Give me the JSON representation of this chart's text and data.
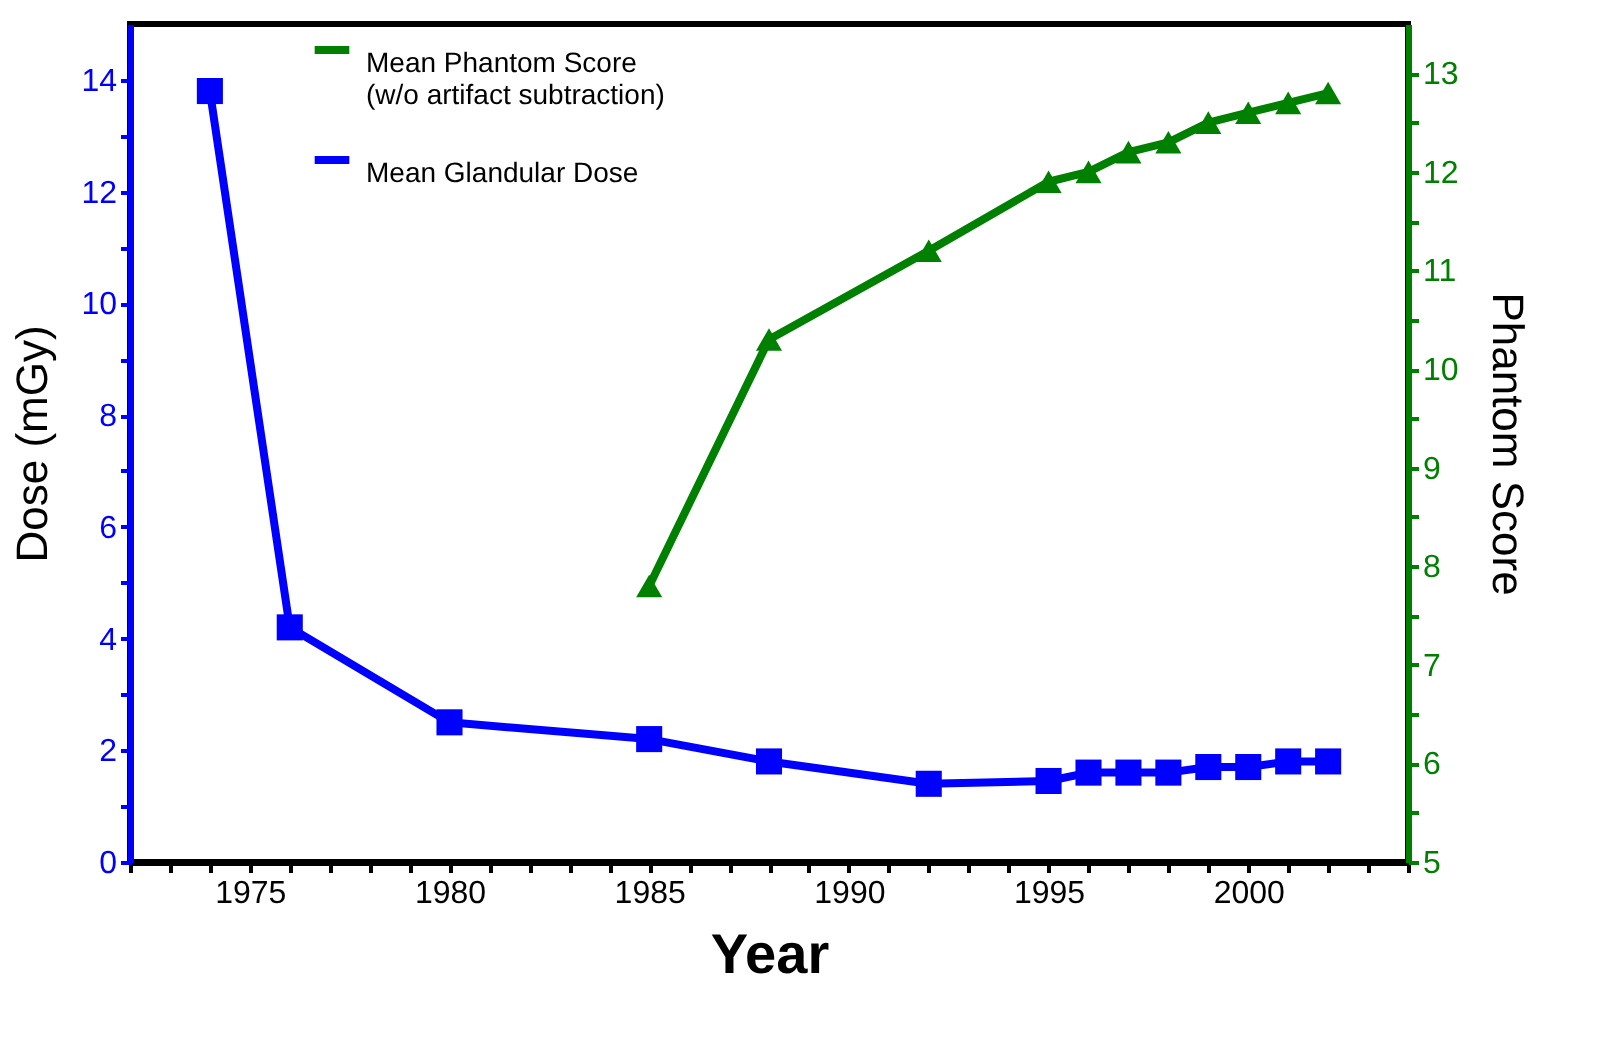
{
  "chart_data": {
    "type": "line",
    "xlabel": "Year",
    "ylabel": "Dose (mGy)",
    "y2label": "Phantom Score",
    "xlim": [
      1972,
      2004
    ],
    "ylim": [
      0,
      15
    ],
    "y2lim": [
      5,
      13.5
    ],
    "xticks": [
      {
        "value": 1972,
        "label": null
      },
      {
        "value": 1973,
        "label": null
      },
      {
        "value": 1974,
        "label": null
      },
      1975,
      {
        "value": 1976,
        "label": null
      },
      {
        "value": 1977,
        "label": null
      },
      {
        "value": 1978,
        "label": null
      },
      {
        "value": 1979,
        "label": null
      },
      1980,
      {
        "value": 1981,
        "label": null
      },
      {
        "value": 1982,
        "label": null
      },
      {
        "value": 1983,
        "label": null
      },
      {
        "value": 1984,
        "label": null
      },
      1985,
      {
        "value": 1986,
        "label": null
      },
      {
        "value": 1987,
        "label": null
      },
      {
        "value": 1988,
        "label": null
      },
      {
        "value": 1989,
        "label": null
      },
      1990,
      {
        "value": 1991,
        "label": null
      },
      {
        "value": 1992,
        "label": null
      },
      {
        "value": 1993,
        "label": null
      },
      {
        "value": 1994,
        "label": null
      },
      1995,
      {
        "value": 1996,
        "label": null
      },
      {
        "value": 1997,
        "label": null
      },
      {
        "value": 1998,
        "label": null
      },
      {
        "value": 1999,
        "label": null
      },
      2000,
      {
        "value": 2001,
        "label": null
      },
      {
        "value": 2002,
        "label": null
      },
      {
        "value": 2003,
        "label": null
      },
      {
        "value": 2004,
        "label": null
      }
    ],
    "yticks": [
      0,
      {
        "value": 1,
        "label": null
      },
      2,
      {
        "value": 3,
        "label": null
      },
      4,
      {
        "value": 5,
        "label": null
      },
      6,
      {
        "value": 7,
        "label": null
      },
      8,
      {
        "value": 9,
        "label": null
      },
      10,
      {
        "value": 11,
        "label": null
      },
      12,
      {
        "value": 13,
        "label": null
      },
      14
    ],
    "y2ticks": [
      5,
      {
        "value": 5.5,
        "label": null
      },
      6,
      {
        "value": 6.5,
        "label": null
      },
      7,
      {
        "value": 7.5,
        "label": null
      },
      8,
      {
        "value": 8.5,
        "label": null
      },
      9,
      {
        "value": 9.5,
        "label": null
      },
      10,
      {
        "value": 10.5,
        "label": null
      },
      11,
      {
        "value": 11.5,
        "label": null
      },
      12,
      {
        "value": 12.5,
        "label": null
      },
      13
    ],
    "grid": false,
    "legend": "top",
    "series": [
      {
        "name": "Mean Phantom Score\n(w/o artifact subtraction)",
        "color": "#008000",
        "axis": "y2",
        "marker": "triangle",
        "x": [
          1985,
          1988,
          1992,
          1995,
          1996,
          1997,
          1998,
          1999,
          2000,
          2001,
          2002
        ],
        "values": [
          7.8,
          10.3,
          11.2,
          11.9,
          12.0,
          12.2,
          12.3,
          12.5,
          12.6,
          12.7,
          12.8
        ]
      },
      {
        "name": "Mean Glandular Dose",
        "color": "#0000ff",
        "axis": "y",
        "marker": "square",
        "x": [
          1974,
          1976,
          1980,
          1985,
          1988,
          1992,
          1995,
          1996,
          1997,
          1998,
          1999,
          2000,
          2001,
          2002
        ],
        "values": [
          13.8,
          4.2,
          2.5,
          2.2,
          1.8,
          1.4,
          1.45,
          1.6,
          1.6,
          1.6,
          1.7,
          1.7,
          1.8,
          1.8
        ]
      }
    ]
  }
}
